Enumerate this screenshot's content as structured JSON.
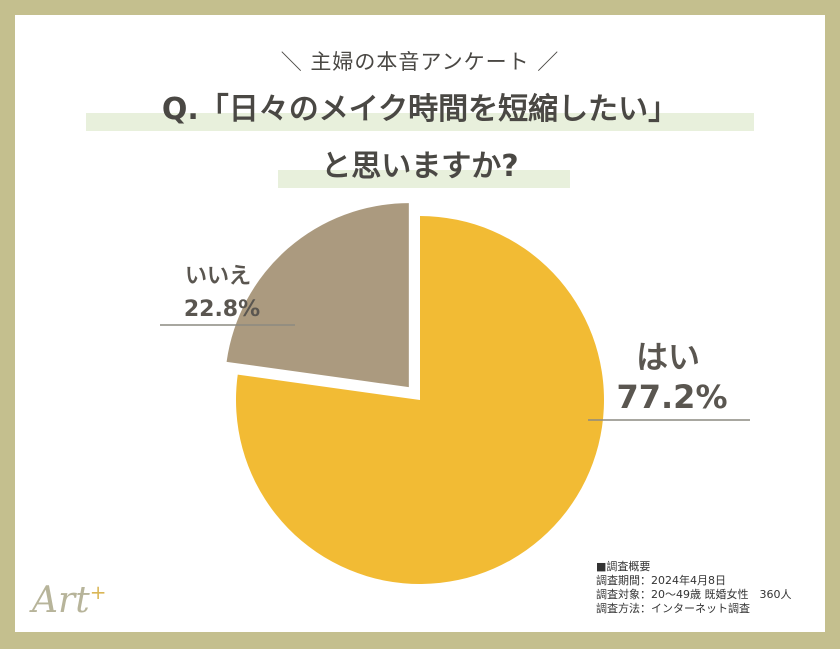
{
  "header": {
    "subtitle": "＼ 主婦の本音アンケート ／",
    "question_line1": "Q.「日々のメイク時間を短縮したい」",
    "question_line2": "と思いますか?"
  },
  "chart_data": {
    "type": "pie",
    "categories": [
      "はい",
      "いいえ"
    ],
    "values": [
      77.2,
      22.8
    ],
    "value_labels": [
      "77.2%",
      "22.8%"
    ],
    "colors": [
      "#f2bb34",
      "#ab9a7f"
    ],
    "exploded": [
      "いいえ"
    ],
    "start": "12 o'clock, clockwise"
  },
  "notes": {
    "heading": "■調査概要",
    "period": "調査期間：2024年4月8日",
    "target": "調査対象：20〜49歳 既婚女性　360人",
    "method": "調査方法：インターネット調査"
  },
  "logo": {
    "text": "Art",
    "mark": "+"
  }
}
